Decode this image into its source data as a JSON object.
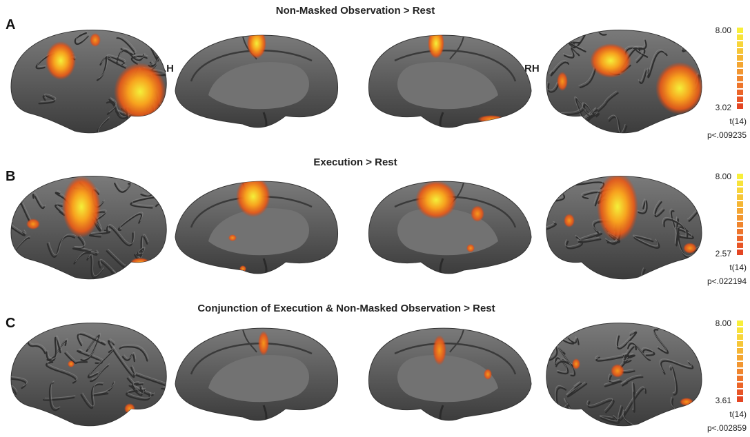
{
  "hemisphere_labels": {
    "left": "LH",
    "right": "RH"
  },
  "panels": [
    {
      "letter": "A",
      "title": "Non-Masked Observation > Rest",
      "colorbar": {
        "max": "8.00",
        "min": "3.02",
        "stat": "t(14)",
        "p": "p<.009235"
      }
    },
    {
      "letter": "B",
      "title": "Execution > Rest",
      "colorbar": {
        "max": "8.00",
        "min": "2.57",
        "stat": "t(14)",
        "p": "p<.022194"
      }
    },
    {
      "letter": "C",
      "title": "Conjunction of Execution & Non-Masked Observation   > Rest",
      "colorbar": {
        "max": "8.00",
        "min": "3.61",
        "stat": "t(14)",
        "p": "p<.002859"
      }
    }
  ]
}
